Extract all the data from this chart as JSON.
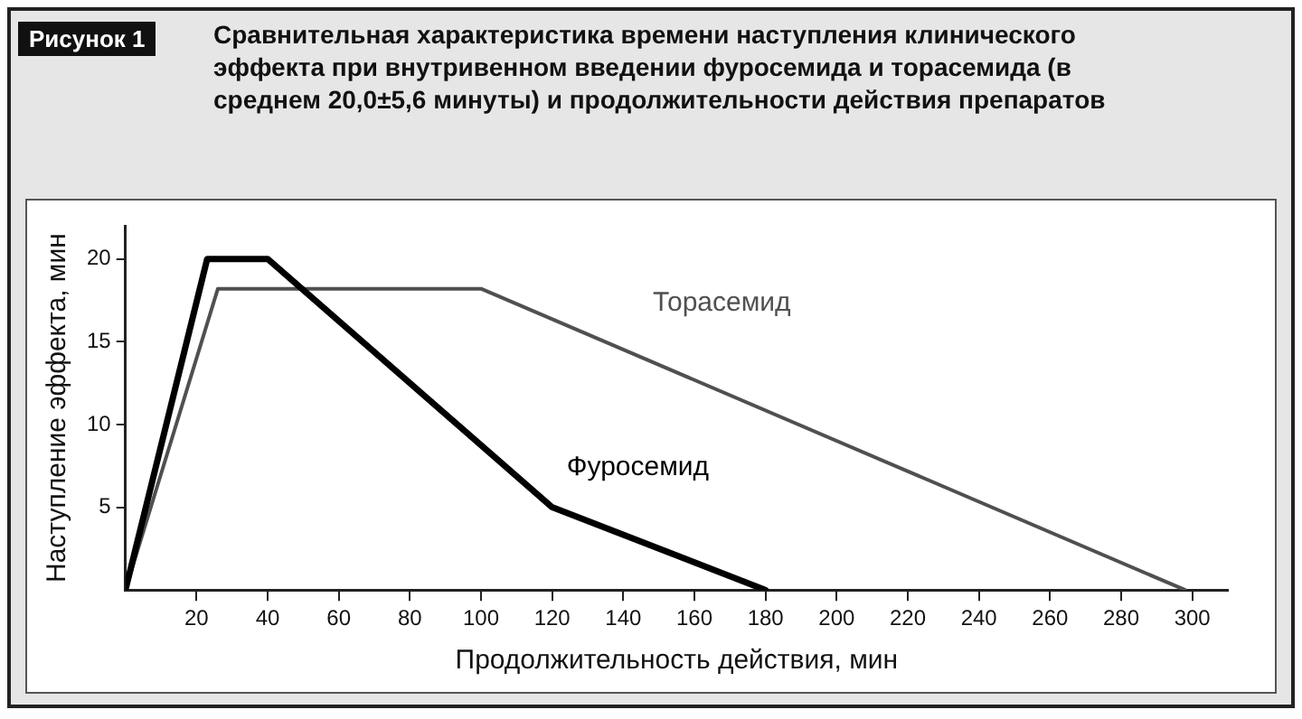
{
  "chart_data": {
    "type": "line",
    "title": "Сравнительная характеристика времени наступления клинического эффекта при внутривенном введении фуросемида и торасемида (в среднем 20,0±5,6 минуты) и продолжительности действия препаратов",
    "annotations": [
      "Рисунок 1"
    ],
    "xlabel": "Продолжительность действия, мин",
    "ylabel": "Наступление эффекта, мин",
    "series": [
      {
        "name": "Фуросемид",
        "color": "#000000",
        "x": [
          0,
          23,
          40,
          120,
          180
        ],
        "values": [
          0,
          20,
          20,
          5,
          0
        ]
      },
      {
        "name": "Торасемид",
        "color": "#505050",
        "x": [
          0,
          26,
          100,
          298
        ],
        "values": [
          0,
          18.2,
          18.2,
          0
        ]
      }
    ],
    "xlim": [
      0,
      310
    ],
    "xticks": [
      20,
      40,
      60,
      80,
      100,
      120,
      140,
      160,
      180,
      200,
      220,
      240,
      260,
      280,
      300
    ],
    "ylim": [
      0,
      22
    ],
    "yticks": [
      5,
      10,
      15,
      20
    ],
    "grid": false,
    "legend": false,
    "marker": "none",
    "line_style": "solid"
  }
}
